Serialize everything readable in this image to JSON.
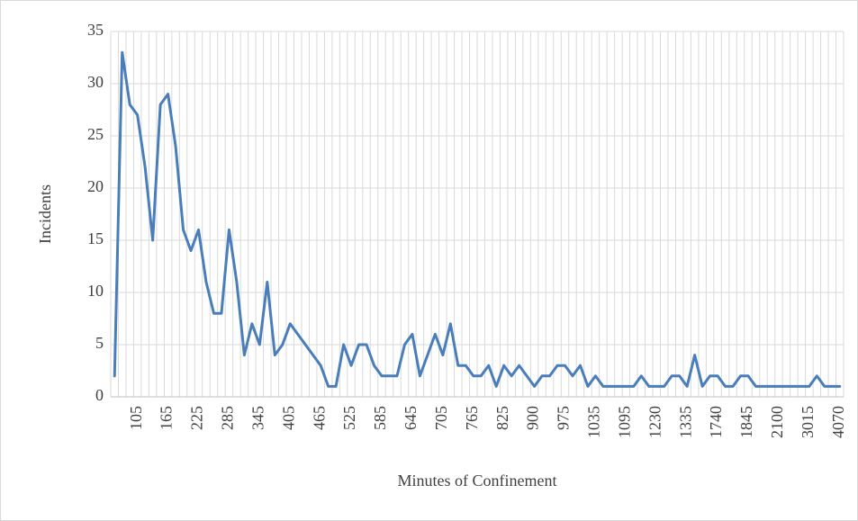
{
  "chart_data": {
    "type": "line",
    "xlabel": "Minutes of Confinement",
    "ylabel": "Incidents",
    "categories": [
      null,
      null,
      null,
      "105",
      null,
      null,
      null,
      "165",
      null,
      null,
      null,
      "225",
      null,
      null,
      null,
      "285",
      null,
      null,
      null,
      "345",
      null,
      null,
      null,
      "405",
      null,
      null,
      null,
      "465",
      null,
      null,
      null,
      "525",
      null,
      null,
      null,
      "585",
      null,
      null,
      null,
      "645",
      null,
      null,
      null,
      "705",
      null,
      null,
      null,
      "765",
      null,
      null,
      null,
      "825",
      null,
      null,
      null,
      "900",
      null,
      null,
      null,
      "975",
      null,
      null,
      null,
      "1035",
      null,
      null,
      null,
      "1095",
      null,
      null,
      null,
      "1230",
      null,
      null,
      null,
      "1335",
      null,
      null,
      null,
      "1740",
      null,
      null,
      null,
      "1845",
      null,
      null,
      null,
      "2100",
      null,
      null,
      null,
      "3015",
      null,
      null,
      null,
      "4070"
    ],
    "values": [
      2,
      33,
      28,
      27,
      22,
      15,
      28,
      29,
      24,
      16,
      14,
      16,
      11,
      8,
      8,
      16,
      11,
      4,
      7,
      5,
      11,
      4,
      5,
      7,
      6,
      5,
      4,
      3,
      1,
      1,
      5,
      3,
      5,
      5,
      3,
      2,
      2,
      2,
      5,
      6,
      2,
      4,
      6,
      4,
      7,
      3,
      3,
      2,
      2,
      3,
      1,
      3,
      2,
      3,
      2,
      1,
      2,
      2,
      3,
      3,
      2,
      3,
      1,
      2,
      1,
      1,
      1,
      1,
      1,
      2,
      1,
      1,
      1,
      2,
      2,
      1,
      4,
      1,
      2,
      2,
      1,
      1,
      2,
      2,
      1,
      1,
      1,
      1,
      1,
      1,
      1,
      1,
      2,
      1,
      1,
      1
    ],
    "color": "#4a7ebb",
    "ylim": [
      0,
      35
    ],
    "yticks": [
      0,
      5,
      10,
      15,
      20,
      25,
      30,
      35
    ],
    "grid": true
  }
}
